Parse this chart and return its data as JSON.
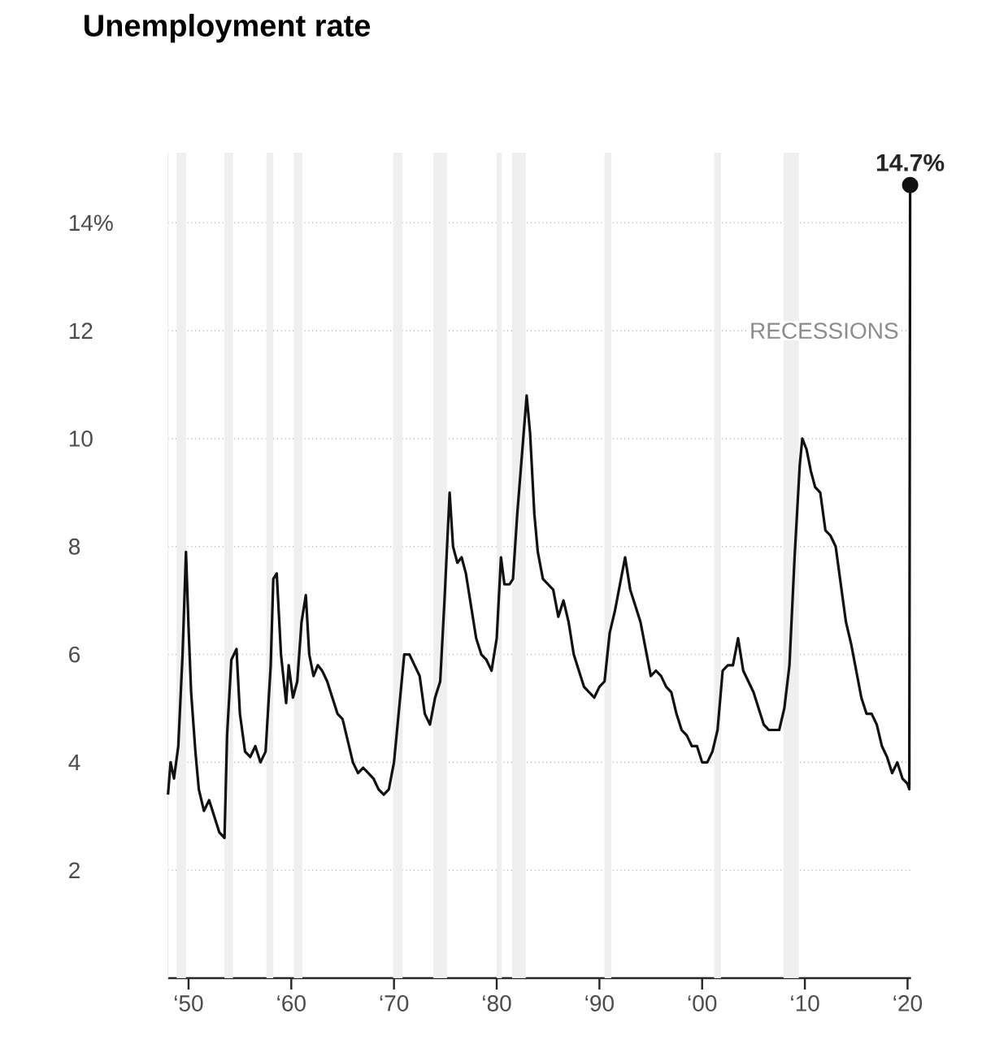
{
  "chart_data": {
    "type": "line",
    "title": "Unemployment rate",
    "x": [
      "1948-01",
      "1948-04",
      "1948-08",
      "1949-01",
      "1949-06",
      "1949-10",
      "1950-01",
      "1950-04",
      "1950-09",
      "1951-01",
      "1951-07",
      "1952-01",
      "1952-07",
      "1953-01",
      "1953-07",
      "1953-10",
      "1954-03",
      "1954-09",
      "1955-01",
      "1955-07",
      "1956-01",
      "1956-07",
      "1957-01",
      "1957-07",
      "1958-01",
      "1958-04",
      "1958-08",
      "1959-01",
      "1959-07",
      "1959-10",
      "1960-03",
      "1960-08",
      "1961-01",
      "1961-06",
      "1961-10",
      "1962-03",
      "1962-08",
      "1963-01",
      "1963-07",
      "1964-01",
      "1964-07",
      "1965-01",
      "1965-07",
      "1966-01",
      "1966-07",
      "1967-01",
      "1967-07",
      "1968-01",
      "1968-07",
      "1969-01",
      "1969-07",
      "1970-01",
      "1970-07",
      "1971-01",
      "1971-07",
      "1972-01",
      "1972-07",
      "1973-01",
      "1973-07",
      "1974-01",
      "1974-07",
      "1974-12",
      "1975-06",
      "1975-10",
      "1976-03",
      "1976-08",
      "1977-01",
      "1977-07",
      "1978-01",
      "1978-07",
      "1979-01",
      "1979-07",
      "1980-01",
      "1980-06",
      "1980-10",
      "1981-04",
      "1981-08",
      "1982-01",
      "1982-07",
      "1982-12",
      "1983-04",
      "1983-09",
      "1984-01",
      "1984-07",
      "1985-01",
      "1985-07",
      "1986-01",
      "1986-07",
      "1987-01",
      "1987-07",
      "1988-01",
      "1988-07",
      "1989-01",
      "1989-07",
      "1990-01",
      "1990-07",
      "1991-01",
      "1991-07",
      "1992-01",
      "1992-07",
      "1993-01",
      "1993-07",
      "1994-01",
      "1994-07",
      "1995-01",
      "1995-07",
      "1996-01",
      "1996-07",
      "1997-01",
      "1997-07",
      "1998-01",
      "1998-07",
      "1999-01",
      "1999-07",
      "2000-01",
      "2000-07",
      "2001-01",
      "2001-07",
      "2002-01",
      "2002-07",
      "2003-01",
      "2003-07",
      "2004-01",
      "2004-07",
      "2005-01",
      "2005-07",
      "2006-01",
      "2006-07",
      "2007-01",
      "2007-07",
      "2008-01",
      "2008-07",
      "2009-01",
      "2009-07",
      "2009-10",
      "2010-03",
      "2010-08",
      "2011-01",
      "2011-07",
      "2012-01",
      "2012-07",
      "2013-01",
      "2013-07",
      "2014-01",
      "2014-07",
      "2015-01",
      "2015-07",
      "2016-01",
      "2016-07",
      "2017-01",
      "2017-07",
      "2018-01",
      "2018-07",
      "2019-01",
      "2019-07",
      "2020-01",
      "2020-03",
      "2020-04"
    ],
    "values": [
      3.4,
      4.0,
      3.7,
      4.3,
      6.0,
      7.9,
      6.5,
      5.3,
      4.2,
      3.5,
      3.1,
      3.3,
      3.0,
      2.7,
      2.6,
      4.5,
      5.9,
      6.1,
      4.9,
      4.2,
      4.1,
      4.3,
      4.0,
      4.2,
      5.8,
      7.4,
      7.5,
      6.0,
      5.1,
      5.8,
      5.2,
      5.5,
      6.6,
      7.1,
      6.0,
      5.6,
      5.8,
      5.7,
      5.5,
      5.2,
      4.9,
      4.8,
      4.4,
      4.0,
      3.8,
      3.9,
      3.8,
      3.7,
      3.5,
      3.4,
      3.5,
      4.0,
      5.0,
      6.0,
      6.0,
      5.8,
      5.6,
      4.9,
      4.7,
      5.2,
      5.5,
      7.0,
      9.0,
      8.0,
      7.7,
      7.8,
      7.5,
      6.9,
      6.3,
      6.0,
      5.9,
      5.7,
      6.3,
      7.8,
      7.3,
      7.3,
      7.4,
      8.6,
      9.8,
      10.8,
      10.1,
      8.6,
      7.9,
      7.4,
      7.3,
      7.2,
      6.7,
      7.0,
      6.6,
      6.0,
      5.7,
      5.4,
      5.3,
      5.2,
      5.4,
      5.5,
      6.4,
      6.8,
      7.3,
      7.8,
      7.2,
      6.9,
      6.6,
      6.1,
      5.6,
      5.7,
      5.6,
      5.4,
      5.3,
      4.9,
      4.6,
      4.5,
      4.3,
      4.3,
      4.0,
      4.0,
      4.2,
      4.6,
      5.7,
      5.8,
      5.8,
      6.3,
      5.7,
      5.5,
      5.3,
      5.0,
      4.7,
      4.6,
      4.6,
      4.6,
      5.0,
      5.8,
      7.8,
      9.5,
      10.0,
      9.8,
      9.4,
      9.1,
      9.0,
      8.3,
      8.2,
      8.0,
      7.3,
      6.6,
      6.2,
      5.7,
      5.2,
      4.9,
      4.9,
      4.7,
      4.3,
      4.1,
      3.8,
      4.0,
      3.7,
      3.6,
      3.5,
      14.7
    ],
    "color": "#111111",
    "line_style": "solid",
    "xlim": [
      "1948-01",
      "2020-05"
    ],
    "ylim": [
      0,
      15.3
    ],
    "xticks": [
      {
        "value": "1950",
        "label": "‘50"
      },
      {
        "value": "1960",
        "label": "‘60"
      },
      {
        "value": "1970",
        "label": "‘70"
      },
      {
        "value": "1980",
        "label": "‘80"
      },
      {
        "value": "1990",
        "label": "‘90"
      },
      {
        "value": "2000",
        "label": "‘00"
      },
      {
        "value": "2010",
        "label": "‘10"
      },
      {
        "value": "2020",
        "label": "‘20"
      }
    ],
    "yticks": [
      2,
      4,
      6,
      8,
      10,
      12,
      {
        "value": 14,
        "label": "14%"
      }
    ],
    "grid": "y",
    "bands": [
      {
        "axis": "x",
        "from": "1948-11",
        "to": "1949-10",
        "color": "#eeeff1"
      },
      {
        "axis": "x",
        "from": "1953-07",
        "to": "1954-05",
        "color": "#eeeff1"
      },
      {
        "axis": "x",
        "from": "1957-08",
        "to": "1958-04",
        "color": "#eeeff1"
      },
      {
        "axis": "x",
        "from": "1960-04",
        "to": "1961-02",
        "color": "#eeeff1"
      },
      {
        "axis": "x",
        "from": "1969-12",
        "to": "1970-11",
        "color": "#eeeff1"
      },
      {
        "axis": "x",
        "from": "1973-11",
        "to": "1975-03",
        "color": "#eeeff1"
      },
      {
        "axis": "x",
        "from": "1980-01",
        "to": "1980-07",
        "color": "#eeeff1"
      },
      {
        "axis": "x",
        "from": "1981-07",
        "to": "1982-11",
        "color": "#eeeff1"
      },
      {
        "axis": "x",
        "from": "1990-07",
        "to": "1991-03",
        "color": "#eeeff1"
      },
      {
        "axis": "x",
        "from": "2001-03",
        "to": "2001-11",
        "color": "#eeeff1"
      },
      {
        "axis": "x",
        "from": "2007-12",
        "to": "2009-06",
        "color": "#eeeff1"
      }
    ],
    "annotations": [
      "RECESSIONS",
      {
        "text": "14.7%",
        "x": "2020-04",
        "y": 14.7
      }
    ]
  }
}
